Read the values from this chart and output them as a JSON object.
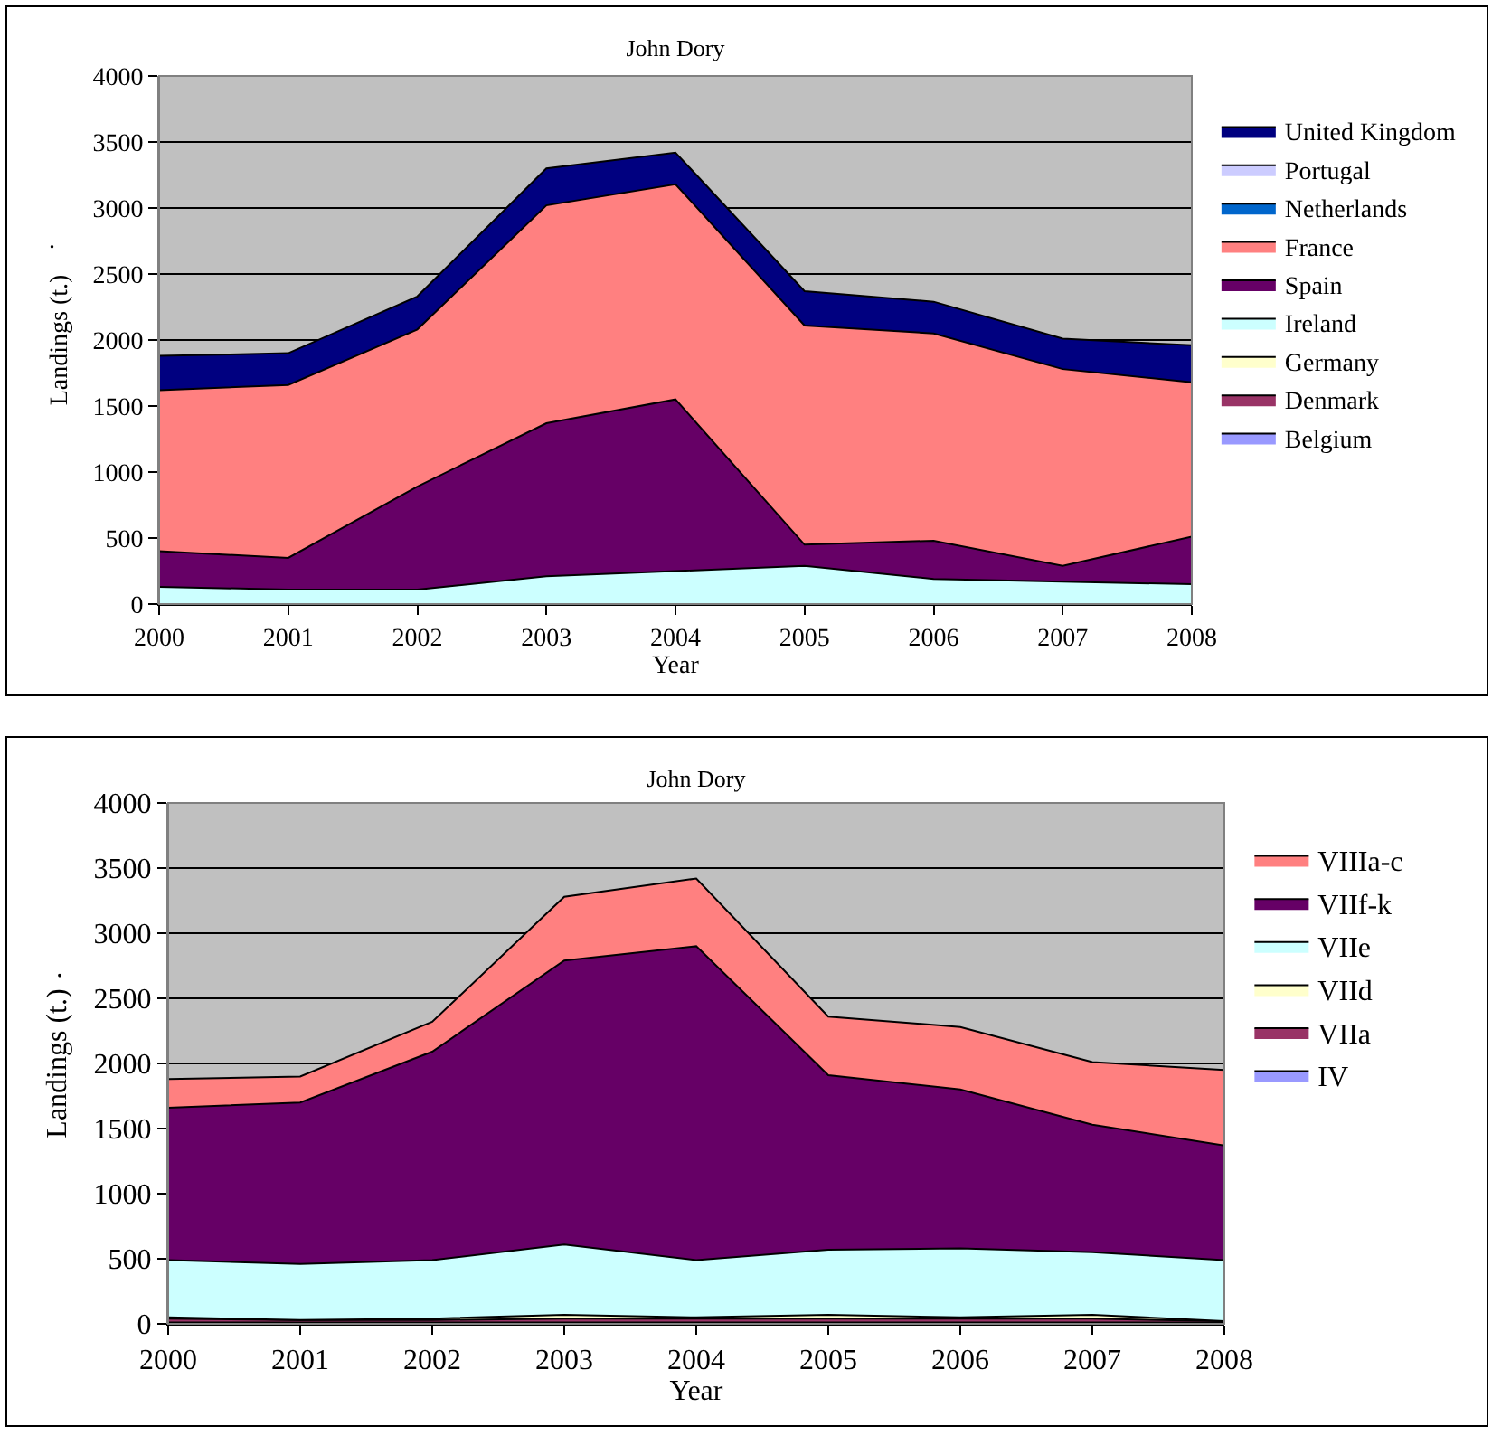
{
  "chart_data": [
    {
      "type": "area",
      "stacked": true,
      "title": "John Dory",
      "xlabel": "Year",
      "ylabel": "Landings (t.)",
      "annotations": [
        "."
      ],
      "x": [
        2000,
        2001,
        2002,
        2003,
        2004,
        2005,
        2006,
        2007,
        2008
      ],
      "xlim": [
        2000,
        2008
      ],
      "xticks": [
        2000,
        2001,
        2002,
        2003,
        2004,
        2005,
        2006,
        2007,
        2008
      ],
      "ylim": [
        0,
        4000
      ],
      "yticks": [
        0,
        500,
        1000,
        1500,
        2000,
        2500,
        3000,
        3500,
        4000
      ],
      "grid": "y",
      "legend": "right",
      "series": [
        {
          "name": "Belgium",
          "color": "#9999ff",
          "values": [
            null,
            null,
            null,
            null,
            null,
            null,
            null,
            null,
            null
          ]
        },
        {
          "name": "Denmark",
          "color": "#993366",
          "values": [
            null,
            null,
            null,
            null,
            null,
            null,
            null,
            null,
            null
          ]
        },
        {
          "name": "Germany",
          "color": "#ffffcc",
          "values": [
            null,
            null,
            null,
            null,
            null,
            null,
            null,
            null,
            null
          ]
        },
        {
          "name": "Ireland",
          "color": "#ccffff",
          "values": [
            130,
            110,
            110,
            210,
            250,
            290,
            190,
            170,
            150
          ]
        },
        {
          "name": "Spain",
          "color": "#660066",
          "values": [
            270,
            240,
            780,
            1160,
            1300,
            160,
            290,
            120,
            360
          ]
        },
        {
          "name": "France",
          "color": "#ff8080",
          "values": [
            1220,
            1310,
            1190,
            1650,
            1630,
            1660,
            1570,
            1490,
            1170
          ]
        },
        {
          "name": "Netherlands",
          "color": "#0066cc",
          "values": [
            null,
            null,
            null,
            null,
            null,
            null,
            null,
            null,
            null
          ]
        },
        {
          "name": "Portugal",
          "color": "#ccccff",
          "values": [
            null,
            null,
            null,
            null,
            null,
            null,
            null,
            null,
            null
          ]
        },
        {
          "name": "United Kingdom",
          "color": "#000080",
          "values": [
            260,
            240,
            250,
            280,
            240,
            260,
            240,
            230,
            280
          ]
        }
      ]
    },
    {
      "type": "area",
      "stacked": true,
      "title": "John Dory",
      "xlabel": "Year",
      "ylabel": "Landings (t.)",
      "annotations": [
        "."
      ],
      "x": [
        2000,
        2001,
        2002,
        2003,
        2004,
        2005,
        2006,
        2007,
        2008
      ],
      "xlim": [
        2000,
        2008
      ],
      "xticks": [
        2000,
        2001,
        2002,
        2003,
        2004,
        2005,
        2006,
        2007,
        2008
      ],
      "ylim": [
        0,
        4000
      ],
      "yticks": [
        0,
        500,
        1000,
        1500,
        2000,
        2500,
        3000,
        3500,
        4000
      ],
      "grid": "y",
      "legend": "right",
      "series": [
        {
          "name": "IV",
          "color": "#9999ff",
          "values": [
            10,
            10,
            10,
            10,
            10,
            10,
            10,
            10,
            10
          ]
        },
        {
          "name": "VIIa",
          "color": "#993366",
          "values": [
            30,
            20,
            20,
            30,
            30,
            30,
            30,
            30,
            10
          ]
        },
        {
          "name": "VIId",
          "color": "#ffffcc",
          "values": [
            10,
            0,
            10,
            30,
            10,
            30,
            10,
            30,
            0
          ]
        },
        {
          "name": "VIIe",
          "color": "#ccffff",
          "values": [
            440,
            430,
            450,
            540,
            440,
            500,
            530,
            480,
            470
          ]
        },
        {
          "name": "VIIf-k",
          "color": "#660066",
          "values": [
            1170,
            1240,
            1600,
            2180,
            2410,
            1340,
            1220,
            980,
            880
          ]
        },
        {
          "name": "VIIIa-c",
          "color": "#ff8080",
          "values": [
            220,
            200,
            230,
            490,
            520,
            450,
            480,
            480,
            580
          ]
        }
      ]
    }
  ]
}
